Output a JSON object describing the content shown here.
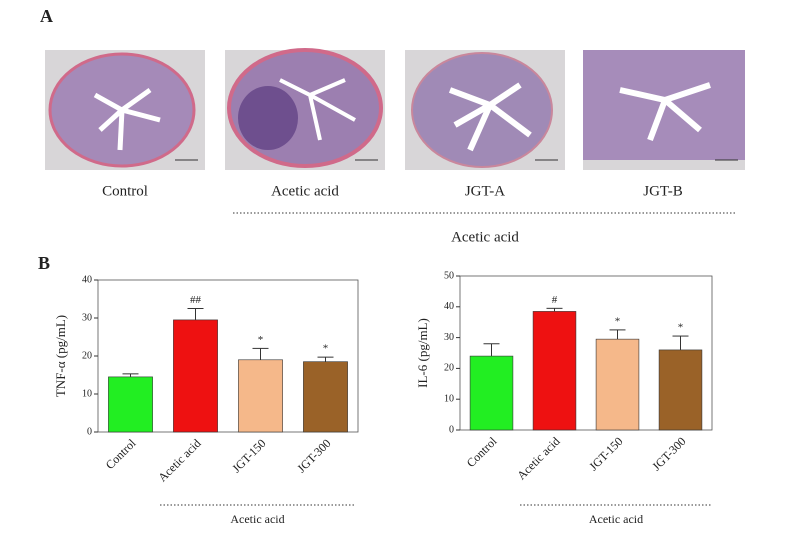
{
  "panel_a": {
    "label": "A",
    "captions": [
      "Control",
      "Acetic acid",
      "JGT-A",
      "JGT-B"
    ],
    "group_label": "Acetic acid"
  },
  "panel_b": {
    "label": "B"
  },
  "chart_data": [
    {
      "type": "bar",
      "y_label": "TNF-α (pg/mL)",
      "categories": [
        "Control",
        "Acetic acid",
        "JGT-150",
        "JGT-300"
      ],
      "values": [
        14.5,
        29.5,
        19,
        18.5
      ],
      "errors": [
        0.8,
        3,
        3,
        1.2
      ],
      "annotations": [
        null,
        "##",
        "*",
        "*"
      ],
      "colors": [
        "#22ee22",
        "#ee1111",
        "#f5b88a",
        "#9a6228"
      ],
      "ylim": [
        0,
        40
      ],
      "yticks": [
        0,
        10,
        20,
        30,
        40
      ],
      "group_label": "Acetic acid"
    },
    {
      "type": "bar",
      "y_label": "IL-6 (pg/mL)",
      "categories": [
        "Control",
        "Acetic acid",
        "JGT-150",
        "JGT-300"
      ],
      "values": [
        24,
        38.5,
        29.5,
        26
      ],
      "errors": [
        4,
        1,
        3,
        4.5
      ],
      "annotations": [
        null,
        "#",
        "*",
        "*"
      ],
      "colors": [
        "#22ee22",
        "#ee1111",
        "#f5b88a",
        "#9a6228"
      ],
      "ylim": [
        0,
        50
      ],
      "yticks": [
        0,
        10,
        20,
        30,
        40,
        50
      ],
      "group_label": "Acetic acid"
    }
  ]
}
